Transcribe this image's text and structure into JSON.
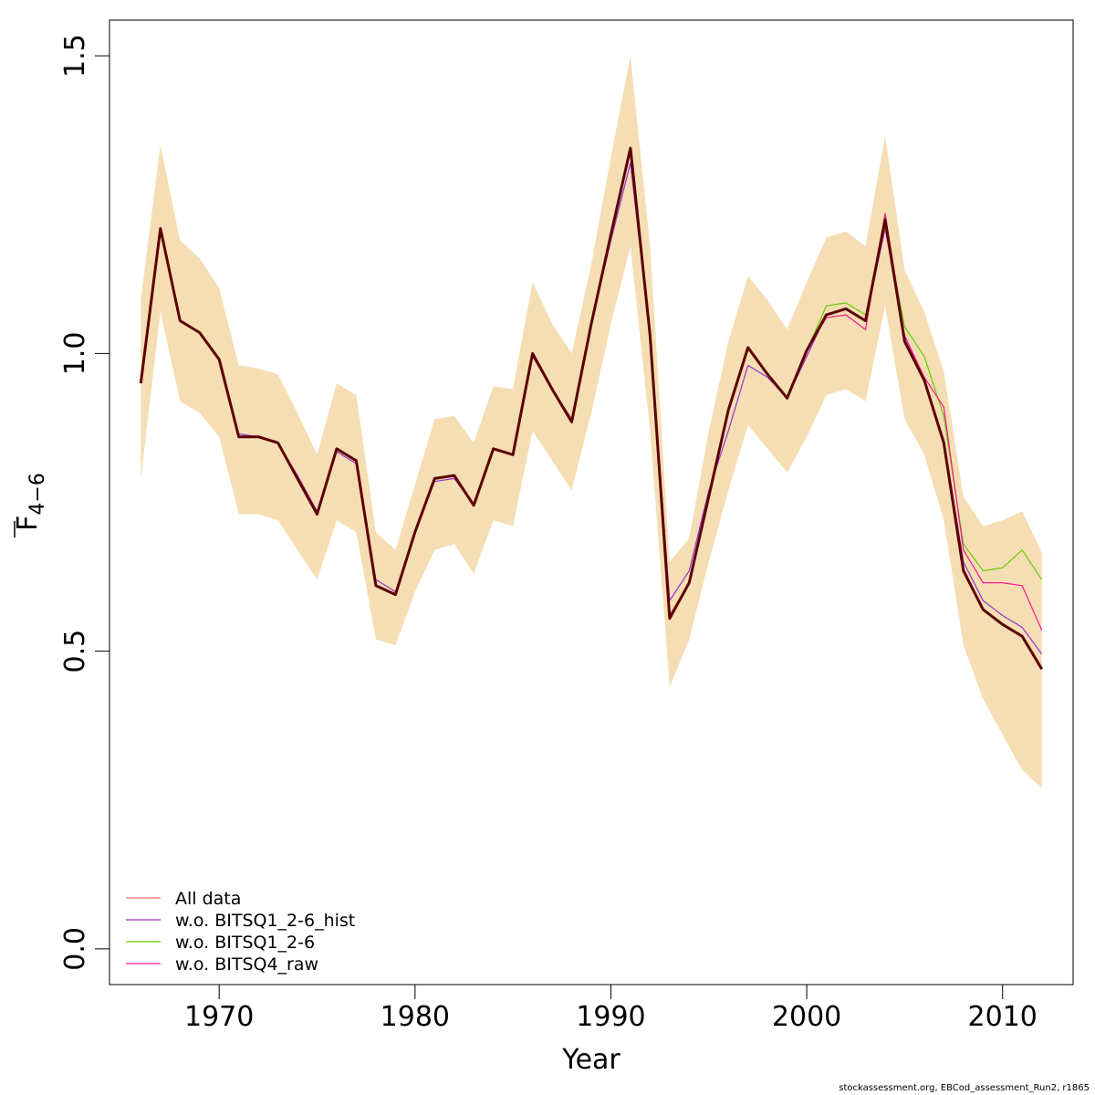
{
  "chart_data": {
    "type": "line",
    "xlabel": "Year",
    "ylabel": "F",
    "ylabel_subscript": "4−6",
    "xlim": [
      1964.4,
      2013.6
    ],
    "ylim": [
      -0.06,
      1.56
    ],
    "x_ticks": [
      1970,
      1980,
      1990,
      2000,
      2010
    ],
    "x_tick_labels": [
      "1970",
      "1980",
      "1990",
      "2000",
      "2010"
    ],
    "y_ticks": [
      0.0,
      0.5,
      1.0,
      1.5
    ],
    "y_tick_labels": [
      "0.0",
      "0.5",
      "1.0",
      "1.5"
    ],
    "grid": false,
    "legend_position": "bottom-left",
    "x": [
      1966,
      1967,
      1968,
      1969,
      1970,
      1971,
      1972,
      1973,
      1974,
      1975,
      1976,
      1977,
      1978,
      1979,
      1980,
      1981,
      1982,
      1983,
      1984,
      1985,
      1986,
      1987,
      1988,
      1989,
      1990,
      1991,
      1992,
      1993,
      1994,
      1995,
      1996,
      1997,
      1998,
      1999,
      2000,
      2001,
      2002,
      2003,
      2004,
      2005,
      2006,
      2007,
      2008,
      2009,
      2010,
      2011,
      2012
    ],
    "confidence_band": {
      "color": "#f5deb3",
      "lower": [
        0.79,
        1.07,
        0.92,
        0.9,
        0.86,
        0.73,
        0.73,
        0.72,
        0.67,
        0.62,
        0.72,
        0.7,
        0.52,
        0.51,
        0.6,
        0.67,
        0.68,
        0.63,
        0.72,
        0.71,
        0.87,
        0.82,
        0.77,
        0.9,
        1.05,
        1.18,
        0.87,
        0.44,
        0.52,
        0.65,
        0.77,
        0.88,
        0.84,
        0.8,
        0.86,
        0.93,
        0.94,
        0.92,
        1.08,
        0.89,
        0.83,
        0.72,
        0.51,
        0.42,
        0.36,
        0.3,
        0.27
      ],
      "upper": [
        1.09,
        1.35,
        1.19,
        1.16,
        1.11,
        0.98,
        0.975,
        0.965,
        0.9,
        0.83,
        0.95,
        0.93,
        0.7,
        0.67,
        0.78,
        0.89,
        0.895,
        0.85,
        0.945,
        0.94,
        1.12,
        1.05,
        1.0,
        1.15,
        1.33,
        1.5,
        1.18,
        0.65,
        0.69,
        0.87,
        1.02,
        1.13,
        1.09,
        1.04,
        1.12,
        1.195,
        1.205,
        1.18,
        1.365,
        1.14,
        1.07,
        0.97,
        0.76,
        0.71,
        0.72,
        0.735,
        0.665
      ]
    },
    "series": [
      {
        "name": "All data",
        "color": "#ff6a6a",
        "values": [
          0.95,
          1.21,
          1.055,
          1.035,
          0.99,
          0.86,
          0.86,
          0.85,
          0.79,
          0.73,
          0.84,
          0.82,
          0.61,
          0.595,
          0.7,
          0.79,
          0.795,
          0.745,
          0.84,
          0.83,
          1.0,
          0.94,
          0.885,
          1.05,
          1.2,
          1.345,
          1.03,
          0.56,
          0.615,
          0.76,
          0.905,
          1.01,
          0.965,
          0.925,
          1.005,
          1.065,
          1.075,
          1.055,
          1.225,
          1.025,
          0.955,
          0.85,
          0.64,
          0.57,
          0.545,
          0.525,
          0.47
        ]
      },
      {
        "name": "w.o. BITSQ1_2-6_hist",
        "color": "#9932cc",
        "values": [
          0.95,
          1.21,
          1.055,
          1.035,
          0.99,
          0.865,
          0.86,
          0.85,
          0.795,
          0.735,
          0.835,
          0.815,
          0.62,
          0.6,
          0.7,
          0.785,
          0.79,
          0.745,
          0.84,
          0.83,
          0.995,
          0.94,
          0.89,
          1.05,
          1.19,
          1.32,
          1.03,
          0.585,
          0.635,
          0.77,
          0.87,
          0.98,
          0.96,
          0.925,
          0.995,
          1.065,
          1.075,
          1.055,
          1.21,
          1.03,
          0.955,
          0.855,
          0.65,
          0.585,
          0.56,
          0.54,
          0.495
        ]
      },
      {
        "name": "w.o. BITSQ1_2-6",
        "color": "#66cd00",
        "values": [
          0.95,
          1.21,
          1.055,
          1.035,
          0.99,
          0.86,
          0.86,
          0.85,
          0.79,
          0.73,
          0.84,
          0.82,
          0.61,
          0.595,
          0.7,
          0.79,
          0.795,
          0.745,
          0.84,
          0.83,
          1.0,
          0.94,
          0.885,
          1.05,
          1.2,
          1.345,
          1.03,
          0.56,
          0.615,
          0.76,
          0.905,
          1.01,
          0.965,
          0.925,
          1.005,
          1.08,
          1.085,
          1.065,
          1.215,
          1.045,
          0.995,
          0.895,
          0.68,
          0.635,
          0.64,
          0.67,
          0.62
        ]
      },
      {
        "name": "w.o. BITSQ4_raw",
        "color": "#ff1493",
        "values": [
          0.95,
          1.21,
          1.055,
          1.035,
          0.99,
          0.86,
          0.86,
          0.85,
          0.79,
          0.73,
          0.84,
          0.82,
          0.61,
          0.595,
          0.7,
          0.79,
          0.795,
          0.745,
          0.84,
          0.83,
          1.0,
          0.94,
          0.885,
          1.05,
          1.2,
          1.345,
          1.03,
          0.56,
          0.615,
          0.76,
          0.905,
          1.01,
          0.965,
          0.925,
          1.005,
          1.06,
          1.065,
          1.04,
          1.235,
          1.03,
          0.96,
          0.91,
          0.67,
          0.615,
          0.615,
          0.61,
          0.535
        ]
      },
      {
        "name": "",
        "color": "#5c0000",
        "values": [
          0.95,
          1.21,
          1.055,
          1.035,
          0.99,
          0.86,
          0.86,
          0.85,
          0.79,
          0.73,
          0.84,
          0.82,
          0.61,
          0.595,
          0.7,
          0.79,
          0.795,
          0.745,
          0.84,
          0.83,
          1.0,
          0.94,
          0.885,
          1.05,
          1.2,
          1.345,
          1.03,
          0.555,
          0.615,
          0.76,
          0.905,
          1.01,
          0.965,
          0.925,
          1.005,
          1.065,
          1.075,
          1.055,
          1.225,
          1.02,
          0.955,
          0.85,
          0.635,
          0.57,
          0.545,
          0.525,
          0.47
        ]
      }
    ],
    "legend": [
      "All data",
      "w.o. BITSQ1_2-6_hist",
      "w.o. BITSQ1_2-6",
      "w.o. BITSQ4_raw"
    ]
  },
  "footer": "stockassessment.org, EBCod_assessment_Run2, r1865"
}
